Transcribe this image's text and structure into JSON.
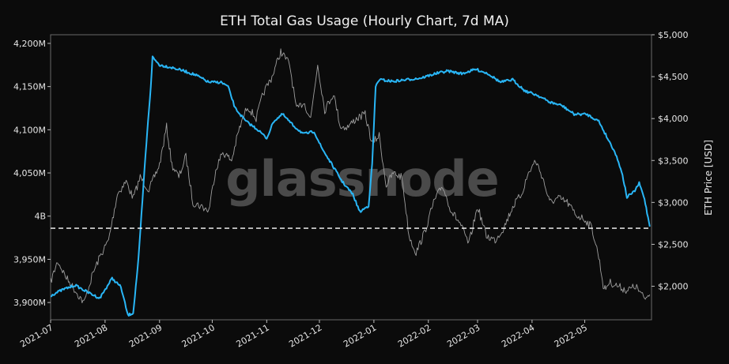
{
  "chart_data": {
    "type": "line",
    "title": "ETH Total Gas Usage (Hourly Chart, 7d MA)",
    "watermark": "glassnode",
    "xlabel": "",
    "ylabel_left": "",
    "ylabel_right": "ETH Price [USD]",
    "x_ticks": [
      "2021-07",
      "2021-08",
      "2021-09",
      "2021-10",
      "2021-11",
      "2021-12",
      "2022-01",
      "2022-02",
      "2022-03",
      "2022-04",
      "2022-05"
    ],
    "y_left_ticks": [
      "3,900M",
      "3,950M",
      "4B",
      "4,050M",
      "4,100M",
      "4,150M",
      "4,200M"
    ],
    "y_left_tick_values": [
      3900,
      3950,
      4000,
      4050,
      4100,
      4150,
      4200
    ],
    "y_right_ticks": [
      "$2,000",
      "$2,500",
      "$3,000",
      "$3,500",
      "$4,000",
      "$4,500",
      "$5,000"
    ],
    "y_right_tick_values": [
      2000,
      2500,
      3000,
      3500,
      4000,
      4500,
      5000
    ],
    "ylim_left": [
      3880,
      4210
    ],
    "ylim_right": [
      1600,
      5000
    ],
    "reference_line": {
      "axis": "left",
      "value": 3986,
      "style": "dashed",
      "color": "#ffffff"
    },
    "series": [
      {
        "axis": "left",
        "color": "#29b6f6",
        "points": [
          [
            "2021-07-01",
            3908
          ],
          [
            "2021-07-08",
            3915
          ],
          [
            "2021-07-15",
            3920
          ],
          [
            "2021-07-22",
            3912
          ],
          [
            "2021-07-29",
            3905
          ],
          [
            "2021-08-05",
            3928
          ],
          [
            "2021-08-10",
            3918
          ],
          [
            "2021-08-14",
            3885
          ],
          [
            "2021-08-17",
            3888
          ],
          [
            "2021-08-20",
            3950
          ],
          [
            "2021-08-24",
            4070
          ],
          [
            "2021-08-27",
            4150
          ],
          [
            "2021-08-28",
            4184
          ],
          [
            "2021-09-01",
            4175
          ],
          [
            "2021-09-08",
            4172
          ],
          [
            "2021-09-15",
            4168
          ],
          [
            "2021-09-22",
            4163
          ],
          [
            "2021-09-29",
            4155
          ],
          [
            "2021-10-06",
            4155
          ],
          [
            "2021-10-10",
            4150
          ],
          [
            "2021-10-14",
            4125
          ],
          [
            "2021-10-20",
            4110
          ],
          [
            "2021-10-27",
            4100
          ],
          [
            "2021-11-01",
            4090
          ],
          [
            "2021-11-05",
            4110
          ],
          [
            "2021-11-10",
            4118
          ],
          [
            "2021-11-16",
            4105
          ],
          [
            "2021-11-22",
            4095
          ],
          [
            "2021-11-28",
            4098
          ],
          [
            "2021-12-02",
            4080
          ],
          [
            "2021-12-08",
            4060
          ],
          [
            "2021-12-14",
            4040
          ],
          [
            "2021-12-20",
            4025
          ],
          [
            "2021-12-24",
            4005
          ],
          [
            "2021-12-29",
            4012
          ],
          [
            "2021-12-31",
            4060
          ],
          [
            "2022-01-02",
            4150
          ],
          [
            "2022-01-04",
            4158
          ],
          [
            "2022-01-12",
            4156
          ],
          [
            "2022-01-20",
            4158
          ],
          [
            "2022-01-28",
            4160
          ],
          [
            "2022-02-05",
            4165
          ],
          [
            "2022-02-12",
            4168
          ],
          [
            "2022-02-20",
            4165
          ],
          [
            "2022-02-28",
            4170
          ],
          [
            "2022-03-07",
            4165
          ],
          [
            "2022-03-14",
            4155
          ],
          [
            "2022-03-21",
            4158
          ],
          [
            "2022-03-28",
            4145
          ],
          [
            "2022-04-04",
            4140
          ],
          [
            "2022-04-11",
            4132
          ],
          [
            "2022-04-18",
            4128
          ],
          [
            "2022-04-25",
            4118
          ],
          [
            "2022-05-02",
            4118
          ],
          [
            "2022-05-09",
            4110
          ],
          [
            "2022-05-14",
            4090
          ],
          [
            "2022-05-18",
            4075
          ],
          [
            "2022-05-22",
            4052
          ],
          [
            "2022-05-25",
            4022
          ],
          [
            "2022-05-29",
            4028
          ],
          [
            "2022-06-01",
            4038
          ],
          [
            "2022-06-04",
            4020
          ],
          [
            "2022-06-07",
            3988
          ]
        ]
      },
      {
        "axis": "right",
        "color": "#9e9e9e",
        "points": [
          [
            "2021-07-01",
            2050
          ],
          [
            "2021-07-05",
            2300
          ],
          [
            "2021-07-10",
            2100
          ],
          [
            "2021-07-15",
            1950
          ],
          [
            "2021-07-20",
            1800
          ],
          [
            "2021-07-25",
            2150
          ],
          [
            "2021-07-29",
            2350
          ],
          [
            "2021-08-03",
            2550
          ],
          [
            "2021-08-08",
            3100
          ],
          [
            "2021-08-13",
            3250
          ],
          [
            "2021-08-17",
            3050
          ],
          [
            "2021-08-21",
            3300
          ],
          [
            "2021-08-26",
            3150
          ],
          [
            "2021-09-01",
            3450
          ],
          [
            "2021-09-05",
            3900
          ],
          [
            "2021-09-08",
            3450
          ],
          [
            "2021-09-12",
            3300
          ],
          [
            "2021-09-16",
            3550
          ],
          [
            "2021-09-20",
            3000
          ],
          [
            "2021-09-25",
            2950
          ],
          [
            "2021-09-29",
            2900
          ],
          [
            "2021-10-03",
            3400
          ],
          [
            "2021-10-07",
            3600
          ],
          [
            "2021-10-12",
            3500
          ],
          [
            "2021-10-16",
            3850
          ],
          [
            "2021-10-21",
            4150
          ],
          [
            "2021-10-26",
            4000
          ],
          [
            "2021-10-30",
            4300
          ],
          [
            "2021-11-04",
            4500
          ],
          [
            "2021-11-09",
            4800
          ],
          [
            "2021-11-14",
            4650
          ],
          [
            "2021-11-18",
            4100
          ],
          [
            "2021-11-22",
            4200
          ],
          [
            "2021-11-26",
            4000
          ],
          [
            "2021-11-30",
            4650
          ],
          [
            "2021-12-04",
            4100
          ],
          [
            "2021-12-09",
            4300
          ],
          [
            "2021-12-13",
            3900
          ],
          [
            "2021-12-17",
            3900
          ],
          [
            "2021-12-22",
            4000
          ],
          [
            "2021-12-27",
            4050
          ],
          [
            "2021-12-31",
            3700
          ],
          [
            "2022-01-04",
            3800
          ],
          [
            "2022-01-08",
            3200
          ],
          [
            "2022-01-12",
            3350
          ],
          [
            "2022-01-17",
            3300
          ],
          [
            "2022-01-21",
            2600
          ],
          [
            "2022-01-25",
            2400
          ],
          [
            "2022-01-30",
            2650
          ],
          [
            "2022-02-04",
            3000
          ],
          [
            "2022-02-09",
            3200
          ],
          [
            "2022-02-14",
            2900
          ],
          [
            "2022-02-19",
            2750
          ],
          [
            "2022-02-24",
            2500
          ],
          [
            "2022-03-01",
            2950
          ],
          [
            "2022-03-06",
            2600
          ],
          [
            "2022-03-11",
            2550
          ],
          [
            "2022-03-16",
            2700
          ],
          [
            "2022-03-21",
            2950
          ],
          [
            "2022-03-26",
            3100
          ],
          [
            "2022-03-30",
            3350
          ],
          [
            "2022-04-03",
            3500
          ],
          [
            "2022-04-07",
            3300
          ],
          [
            "2022-04-11",
            3000
          ],
          [
            "2022-04-16",
            3050
          ],
          [
            "2022-04-21",
            3000
          ],
          [
            "2022-04-26",
            2850
          ],
          [
            "2022-05-01",
            2800
          ],
          [
            "2022-05-05",
            2700
          ],
          [
            "2022-05-09",
            2350
          ],
          [
            "2022-05-12",
            1950
          ],
          [
            "2022-05-15",
            2050
          ],
          [
            "2022-05-20",
            2000
          ],
          [
            "2022-05-25",
            1950
          ],
          [
            "2022-05-30",
            2000
          ],
          [
            "2022-06-04",
            1850
          ],
          [
            "2022-06-07",
            1900
          ]
        ]
      }
    ]
  }
}
